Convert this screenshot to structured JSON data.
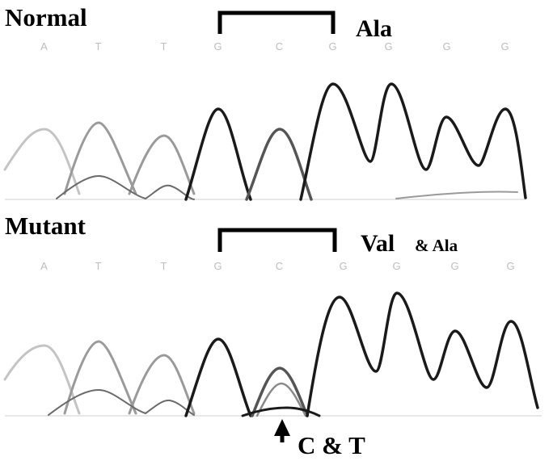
{
  "panels": [
    {
      "id": "normal",
      "label": "Normal",
      "bases": [
        "A",
        "T",
        "T",
        "G",
        "C",
        "G",
        "G",
        "G",
        "G"
      ],
      "codon_label": "Ala"
    },
    {
      "id": "mutant",
      "label": "Mutant",
      "bases": [
        "A",
        "T",
        "T",
        "G",
        "C",
        "G",
        "G",
        "G",
        "G"
      ],
      "codon_label_main": "Val",
      "codon_label_extra": "& Ala",
      "arrow_label": "C & T"
    }
  ],
  "colors": {
    "trace_dark": "#1a1a1a",
    "trace_mid": "#555555",
    "trace_light": "#9a9a9a",
    "trace_faint": "#c4c4c4",
    "base_letters": "#bdbdbd"
  }
}
